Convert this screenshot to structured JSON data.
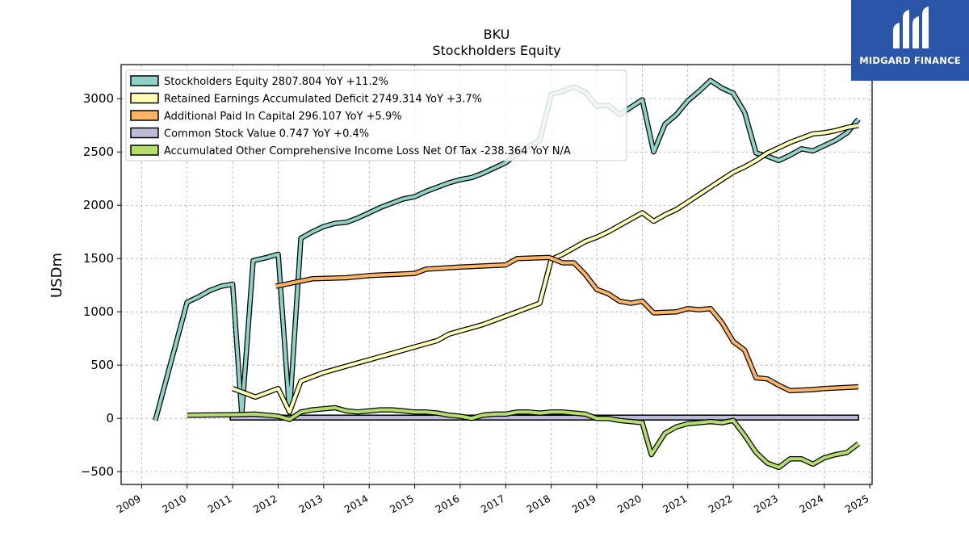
{
  "logo": {
    "text": "MIDGARD FINANCE"
  },
  "chart_data": {
    "type": "line",
    "title": "BKU",
    "subtitle": "Stockholders  Equity",
    "ylabel": "USDm",
    "xlim": [
      2008.55,
      2025.05
    ],
    "ylim": [
      -620,
      3320
    ],
    "yticks": [
      -500,
      0,
      500,
      1000,
      1500,
      2000,
      2500,
      3000
    ],
    "ytick_labels": [
      "−500",
      "0",
      "500",
      "1000",
      "1500",
      "2000",
      "2500",
      "3000"
    ],
    "xticks": [
      2009,
      2010,
      2011,
      2012,
      2013,
      2014,
      2015,
      2016,
      2017,
      2018,
      2019,
      2020,
      2021,
      2022,
      2023,
      2024,
      2025
    ],
    "xtick_labels": [
      "2009",
      "2010",
      "2011",
      "2012",
      "2013",
      "2014",
      "2015",
      "2016",
      "2017",
      "2018",
      "2019",
      "2020",
      "2021",
      "2022",
      "2023",
      "2024",
      "2025"
    ],
    "grid": true,
    "legend_position": "top-left",
    "series": [
      {
        "name": "Stockholders Equity",
        "legend": "Stockholders Equity  2807.804 YoY +11.2%",
        "color": "#8dd3c7",
        "points": [
          [
            2009.3,
            -20
          ],
          [
            2010.0,
            1090
          ],
          [
            2010.25,
            1140
          ],
          [
            2010.5,
            1200
          ],
          [
            2010.75,
            1240
          ],
          [
            2011.0,
            1260
          ],
          [
            2011.2,
            40
          ],
          [
            2011.45,
            1480
          ],
          [
            2011.75,
            1510
          ],
          [
            2012.0,
            1540
          ],
          [
            2012.25,
            60
          ],
          [
            2012.5,
            1690
          ],
          [
            2012.75,
            1750
          ],
          [
            2013.0,
            1800
          ],
          [
            2013.25,
            1830
          ],
          [
            2013.5,
            1840
          ],
          [
            2013.75,
            1880
          ],
          [
            2014.0,
            1930
          ],
          [
            2014.25,
            1980
          ],
          [
            2014.5,
            2020
          ],
          [
            2014.75,
            2060
          ],
          [
            2015.0,
            2080
          ],
          [
            2015.25,
            2130
          ],
          [
            2015.5,
            2170
          ],
          [
            2015.75,
            2210
          ],
          [
            2016.0,
            2240
          ],
          [
            2016.25,
            2260
          ],
          [
            2016.5,
            2300
          ],
          [
            2016.75,
            2350
          ],
          [
            2017.0,
            2400
          ],
          [
            2017.25,
            2480
          ],
          [
            2017.5,
            2550
          ],
          [
            2017.75,
            2610
          ],
          [
            2018.0,
            3040
          ],
          [
            2018.25,
            3070
          ],
          [
            2018.5,
            3110
          ],
          [
            2018.75,
            3060
          ],
          [
            2019.0,
            2930
          ],
          [
            2019.25,
            2940
          ],
          [
            2019.5,
            2850
          ],
          [
            2019.75,
            2920
          ],
          [
            2020.0,
            2990
          ],
          [
            2020.25,
            2500
          ],
          [
            2020.5,
            2760
          ],
          [
            2020.75,
            2850
          ],
          [
            2021.0,
            2980
          ],
          [
            2021.25,
            3070
          ],
          [
            2021.5,
            3170
          ],
          [
            2021.75,
            3100
          ],
          [
            2022.0,
            3050
          ],
          [
            2022.25,
            2870
          ],
          [
            2022.5,
            2490
          ],
          [
            2022.75,
            2460
          ],
          [
            2023.0,
            2420
          ],
          [
            2023.25,
            2470
          ],
          [
            2023.5,
            2530
          ],
          [
            2023.75,
            2510
          ],
          [
            2024.0,
            2560
          ],
          [
            2024.25,
            2610
          ],
          [
            2024.5,
            2680
          ],
          [
            2024.75,
            2808
          ]
        ]
      },
      {
        "name": "Retained Earnings Accumulated Deficit",
        "legend": "Retained Earnings Accumulated Deficit  2749.314 YoY +3.7%",
        "color": "#ffffb3",
        "points": [
          [
            2011.0,
            280
          ],
          [
            2011.5,
            200
          ],
          [
            2012.0,
            280
          ],
          [
            2012.25,
            60
          ],
          [
            2012.5,
            350
          ],
          [
            2012.75,
            390
          ],
          [
            2013.0,
            430
          ],
          [
            2013.25,
            460
          ],
          [
            2013.5,
            490
          ],
          [
            2013.75,
            520
          ],
          [
            2014.0,
            550
          ],
          [
            2014.25,
            580
          ],
          [
            2014.5,
            610
          ],
          [
            2014.75,
            640
          ],
          [
            2015.0,
            670
          ],
          [
            2015.25,
            700
          ],
          [
            2015.5,
            730
          ],
          [
            2015.75,
            790
          ],
          [
            2016.0,
            820
          ],
          [
            2016.25,
            850
          ],
          [
            2016.5,
            880
          ],
          [
            2016.75,
            920
          ],
          [
            2017.0,
            960
          ],
          [
            2017.25,
            1000
          ],
          [
            2017.5,
            1040
          ],
          [
            2017.75,
            1080
          ],
          [
            2018.0,
            1490
          ],
          [
            2018.25,
            1540
          ],
          [
            2018.5,
            1600
          ],
          [
            2018.75,
            1660
          ],
          [
            2019.0,
            1700
          ],
          [
            2019.25,
            1750
          ],
          [
            2019.5,
            1810
          ],
          [
            2019.75,
            1870
          ],
          [
            2020.0,
            1930
          ],
          [
            2020.25,
            1850
          ],
          [
            2020.5,
            1910
          ],
          [
            2020.75,
            1960
          ],
          [
            2021.0,
            2030
          ],
          [
            2021.25,
            2100
          ],
          [
            2021.5,
            2170
          ],
          [
            2021.75,
            2240
          ],
          [
            2022.0,
            2310
          ],
          [
            2022.25,
            2360
          ],
          [
            2022.5,
            2420
          ],
          [
            2022.75,
            2490
          ],
          [
            2023.0,
            2540
          ],
          [
            2023.25,
            2590
          ],
          [
            2023.5,
            2630
          ],
          [
            2023.75,
            2670
          ],
          [
            2024.0,
            2680
          ],
          [
            2024.25,
            2700
          ],
          [
            2024.5,
            2730
          ],
          [
            2024.75,
            2749
          ]
        ]
      },
      {
        "name": "Additional Paid In Capital",
        "legend": "Additional Paid In Capital  296.107 YoY +5.9%",
        "color": "#fdb462",
        "points": [
          [
            2011.95,
            1240
          ],
          [
            2012.75,
            1310
          ],
          [
            2013.5,
            1320
          ],
          [
            2014.0,
            1340
          ],
          [
            2014.5,
            1350
          ],
          [
            2015.0,
            1360
          ],
          [
            2015.25,
            1400
          ],
          [
            2016.0,
            1420
          ],
          [
            2017.0,
            1440
          ],
          [
            2017.25,
            1500
          ],
          [
            2017.95,
            1510
          ],
          [
            2018.25,
            1460
          ],
          [
            2018.5,
            1460
          ],
          [
            2018.75,
            1350
          ],
          [
            2019.0,
            1210
          ],
          [
            2019.25,
            1170
          ],
          [
            2019.5,
            1100
          ],
          [
            2019.75,
            1080
          ],
          [
            2020.0,
            1100
          ],
          [
            2020.25,
            990
          ],
          [
            2020.75,
            1000
          ],
          [
            2021.0,
            1030
          ],
          [
            2021.25,
            1020
          ],
          [
            2021.5,
            1030
          ],
          [
            2021.75,
            900
          ],
          [
            2022.0,
            720
          ],
          [
            2022.25,
            640
          ],
          [
            2022.5,
            380
          ],
          [
            2022.75,
            370
          ],
          [
            2023.0,
            310
          ],
          [
            2023.25,
            260
          ],
          [
            2023.75,
            270
          ],
          [
            2024.0,
            280
          ],
          [
            2024.75,
            296
          ]
        ]
      },
      {
        "name": "Common Stock Value",
        "legend": "Common Stock Value  0.747 YoY +0.4%",
        "color": "#bebada",
        "fill": true,
        "points": [
          [
            2010.95,
            1
          ],
          [
            2024.75,
            1
          ]
        ]
      },
      {
        "name": "Accumulated Other Comprehensive Income Loss Net Of Tax",
        "legend": "Accumulated Other Comprehensive Income Loss Net Of Tax  -238.364 YoY N/A",
        "color": "#b3de69",
        "points": [
          [
            2010.0,
            30
          ],
          [
            2011.0,
            35
          ],
          [
            2011.5,
            40
          ],
          [
            2011.75,
            30
          ],
          [
            2012.0,
            20
          ],
          [
            2012.25,
            -10
          ],
          [
            2012.5,
            60
          ],
          [
            2012.75,
            80
          ],
          [
            2013.0,
            90
          ],
          [
            2013.25,
            100
          ],
          [
            2013.5,
            70
          ],
          [
            2013.75,
            60
          ],
          [
            2014.0,
            70
          ],
          [
            2014.25,
            80
          ],
          [
            2014.5,
            80
          ],
          [
            2014.75,
            70
          ],
          [
            2015.0,
            60
          ],
          [
            2015.25,
            60
          ],
          [
            2015.5,
            50
          ],
          [
            2015.75,
            30
          ],
          [
            2016.0,
            20
          ],
          [
            2016.25,
            0
          ],
          [
            2016.5,
            30
          ],
          [
            2016.75,
            40
          ],
          [
            2017.0,
            40
          ],
          [
            2017.25,
            60
          ],
          [
            2017.5,
            60
          ],
          [
            2017.75,
            50
          ],
          [
            2018.0,
            60
          ],
          [
            2018.25,
            60
          ],
          [
            2018.5,
            50
          ],
          [
            2018.75,
            40
          ],
          [
            2019.0,
            0
          ],
          [
            2019.25,
            0
          ],
          [
            2019.5,
            -20
          ],
          [
            2019.75,
            -30
          ],
          [
            2020.0,
            -40
          ],
          [
            2020.2,
            -340
          ],
          [
            2020.5,
            -140
          ],
          [
            2020.75,
            -80
          ],
          [
            2021.0,
            -50
          ],
          [
            2021.25,
            -40
          ],
          [
            2021.5,
            -30
          ],
          [
            2021.75,
            -40
          ],
          [
            2022.0,
            -20
          ],
          [
            2022.25,
            -160
          ],
          [
            2022.5,
            -320
          ],
          [
            2022.75,
            -420
          ],
          [
            2023.0,
            -460
          ],
          [
            2023.25,
            -380
          ],
          [
            2023.5,
            -380
          ],
          [
            2023.75,
            -430
          ],
          [
            2024.0,
            -370
          ],
          [
            2024.25,
            -340
          ],
          [
            2024.5,
            -320
          ],
          [
            2024.75,
            -238
          ]
        ]
      }
    ]
  }
}
